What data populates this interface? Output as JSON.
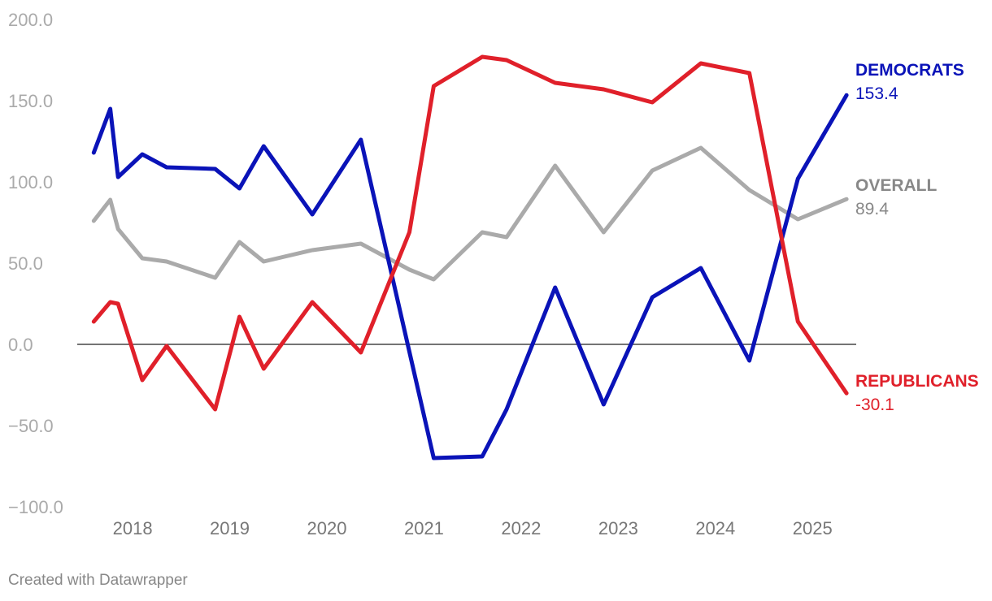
{
  "chart_data": {
    "type": "line",
    "title": "",
    "xlabel": "",
    "ylabel": "",
    "ylim": [
      -100,
      200
    ],
    "xlim": [
      2017.43,
      2025.45
    ],
    "yticks": [
      200,
      150,
      100,
      50,
      0,
      -50,
      -100
    ],
    "ytick_labels": [
      "200.0",
      "150.0",
      "100.0",
      "50.0",
      "0.0",
      "−50.0",
      "−100.0"
    ],
    "xticks": [
      2018,
      2019,
      2020,
      2021,
      2022,
      2023,
      2024,
      2025
    ],
    "xtick_labels": [
      "2018",
      "2019",
      "2020",
      "2021",
      "2022",
      "2023",
      "2024",
      "2025"
    ],
    "zero_line": true,
    "series": [
      {
        "name": "OVERALL",
        "color": "#aaaaaa",
        "label_color": "#888888",
        "last_label": "89.4",
        "x": [
          2017.6,
          2017.77,
          2017.85,
          2018.1,
          2018.35,
          2018.85,
          2019.1,
          2019.35,
          2019.85,
          2020.35,
          2020.85,
          2021.1,
          2021.6,
          2021.85,
          2022.35,
          2022.85,
          2023.35,
          2023.85,
          2024.35,
          2024.85,
          2025.35
        ],
        "values": [
          76,
          89,
          71,
          53,
          51,
          41,
          63,
          51,
          58,
          62,
          46,
          40,
          69,
          66,
          110,
          69,
          107,
          121,
          95,
          77,
          89.4
        ]
      },
      {
        "name": "DEMOCRATS",
        "color": "#0a13b8",
        "label_color": "#0a13b8",
        "last_label": "153.4",
        "x": [
          2017.6,
          2017.77,
          2017.85,
          2018.1,
          2018.35,
          2018.85,
          2019.1,
          2019.35,
          2019.85,
          2020.35,
          2021.1,
          2021.6,
          2021.85,
          2022.35,
          2022.85,
          2023.35,
          2023.85,
          2024.35,
          2024.85,
          2025.35
        ],
        "values": [
          118,
          145,
          103,
          117,
          109,
          108,
          96,
          122,
          80,
          126,
          -70,
          -69,
          -40,
          35,
          -37,
          29,
          47,
          -10,
          102,
          153.4
        ]
      },
      {
        "name": "REPUBLICANS",
        "color": "#e0202a",
        "label_color": "#e0202a",
        "last_label": "-30.1",
        "x": [
          2017.6,
          2017.77,
          2017.85,
          2018.1,
          2018.35,
          2018.85,
          2019.1,
          2019.35,
          2019.85,
          2020.35,
          2020.85,
          2021.1,
          2021.6,
          2021.85,
          2022.35,
          2022.85,
          2023.35,
          2023.85,
          2024.35,
          2024.85,
          2025.35
        ],
        "values": [
          14,
          26,
          25,
          -22,
          -1,
          -40,
          17,
          -15,
          26,
          -5,
          69,
          159,
          177,
          175,
          161,
          157,
          149,
          173,
          167,
          14,
          -30.1
        ]
      }
    ]
  },
  "credit": "Created with Datawrapper"
}
